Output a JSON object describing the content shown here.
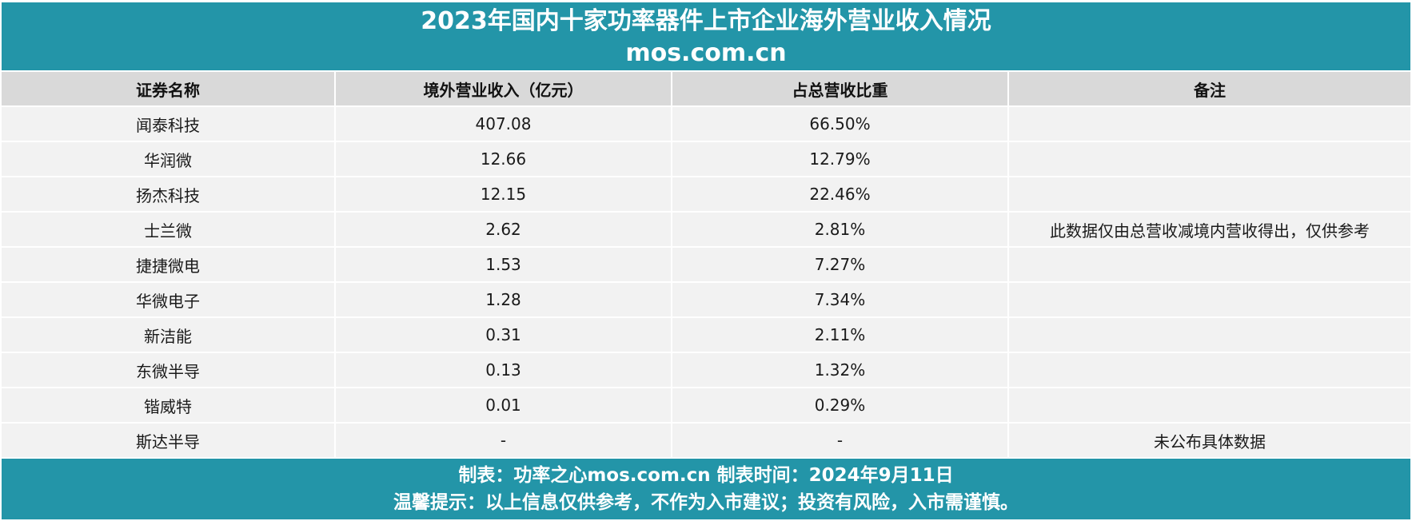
{
  "title": {
    "line1": "2023年国内十家功率器件上市企业海外营业收入情况",
    "line2": "mos.com.cn"
  },
  "table": {
    "headers": [
      "证券名称",
      "境外营业收入（亿元）",
      "占总营收比重",
      "备注"
    ],
    "rows": [
      {
        "name": "闻泰科技",
        "revenue": "407.08",
        "ratio": "66.50%",
        "note": ""
      },
      {
        "name": "华润微",
        "revenue": "12.66",
        "ratio": "12.79%",
        "note": ""
      },
      {
        "name": "扬杰科技",
        "revenue": "12.15",
        "ratio": "22.46%",
        "note": ""
      },
      {
        "name": "士兰微",
        "revenue": "2.62",
        "ratio": "2.81%",
        "note": "此数据仅由总营收减境内营收得出，仅供参考"
      },
      {
        "name": "捷捷微电",
        "revenue": "1.53",
        "ratio": "7.27%",
        "note": ""
      },
      {
        "name": "华微电子",
        "revenue": "1.28",
        "ratio": "7.34%",
        "note": ""
      },
      {
        "name": "新洁能",
        "revenue": "0.31",
        "ratio": "2.11%",
        "note": ""
      },
      {
        "name": "东微半导",
        "revenue": "0.13",
        "ratio": "1.32%",
        "note": ""
      },
      {
        "name": "锴威特",
        "revenue": "0.01",
        "ratio": "0.29%",
        "note": ""
      },
      {
        "name": "斯达半导",
        "revenue": "-",
        "ratio": "-",
        "note": "未公布具体数据"
      }
    ]
  },
  "footer": {
    "line1": "制表：功率之心mos.com.cn  制表时间：2024年9月11日",
    "line2": "温馨提示：以上信息仅供参考，不作为入市建议；投资有风险，入市需谨慎。"
  },
  "colors": {
    "band": "#2395a8",
    "header_bg": "#d9d9d9",
    "row_bg": "#f2f2f2"
  }
}
